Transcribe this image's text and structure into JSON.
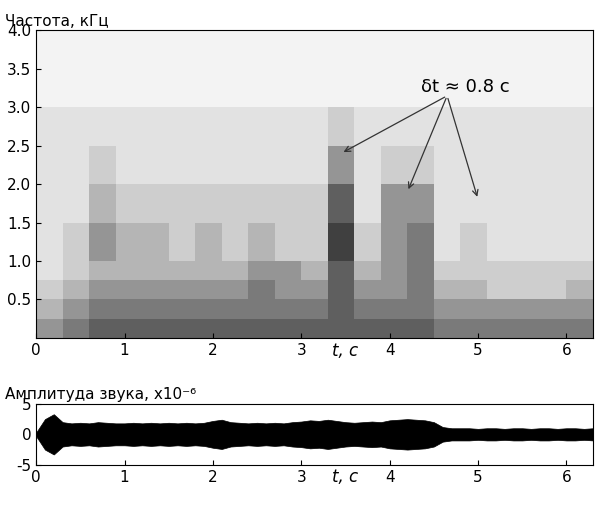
{
  "chart_data": [
    {
      "type": "heatmap",
      "ylabel": "Частота, кГц",
      "xlabel": "t, с",
      "xlim": [
        0,
        6.3
      ],
      "xticks": [
        0,
        1,
        2,
        3,
        4,
        5,
        6
      ],
      "ylim": [
        0,
        4.0
      ],
      "yticks": [
        0.5,
        1.0,
        1.5,
        2.0,
        2.5,
        3.0,
        3.5,
        4.0
      ],
      "x_edges": [
        0,
        0.3,
        0.6,
        0.9,
        1.2,
        1.5,
        1.8,
        2.1,
        2.4,
        2.7,
        3.0,
        3.3,
        3.6,
        3.9,
        4.2,
        4.5,
        4.8,
        5.1,
        5.4,
        5.7,
        6.0,
        6.3
      ],
      "y_edges": [
        0,
        0.25,
        0.5,
        0.75,
        1.0,
        1.5,
        2.0,
        2.5,
        3.0,
        4.0
      ],
      "zlim": [
        0,
        10
      ],
      "cells": [
        [
          5,
          6,
          7,
          7,
          7,
          7,
          7,
          7,
          7,
          7,
          7,
          7,
          7,
          7,
          7,
          6,
          6,
          6,
          6,
          6,
          6
        ],
        [
          4,
          5,
          6,
          6,
          6,
          6,
          6,
          6,
          6,
          6,
          6,
          7,
          6,
          6,
          6,
          5,
          5,
          5,
          5,
          5,
          5
        ],
        [
          3,
          4,
          5,
          5,
          5,
          5,
          5,
          5,
          6,
          5,
          5,
          7,
          5,
          5,
          6,
          4,
          4,
          3,
          3,
          3,
          4
        ],
        [
          2,
          3,
          4,
          4,
          4,
          4,
          4,
          4,
          5,
          5,
          4,
          7,
          4,
          5,
          6,
          3,
          3,
          3,
          3,
          3,
          3
        ],
        [
          2,
          3,
          5,
          4,
          4,
          3,
          4,
          3,
          4,
          3,
          3,
          8,
          3,
          5,
          6,
          2,
          3,
          2,
          2,
          2,
          2
        ],
        [
          2,
          2,
          4,
          3,
          3,
          3,
          3,
          3,
          3,
          3,
          3,
          7,
          2,
          5,
          5,
          2,
          2,
          2,
          2,
          2,
          2
        ],
        [
          2,
          2,
          3,
          2,
          2,
          2,
          2,
          2,
          2,
          2,
          2,
          5,
          2,
          3,
          3,
          2,
          2,
          2,
          2,
          2,
          2
        ],
        [
          2,
          2,
          2,
          2,
          2,
          2,
          2,
          2,
          2,
          2,
          2,
          3,
          2,
          2,
          2,
          2,
          2,
          2,
          2,
          2,
          2
        ],
        [
          1,
          1,
          1,
          1,
          1,
          1,
          1,
          1,
          1,
          1,
          1,
          1,
          1,
          1,
          1,
          1,
          1,
          1,
          1,
          1,
          1
        ]
      ],
      "annotation": {
        "text": "δt ≈ 0.8 с",
        "x": 4.35,
        "y": 3.15,
        "points": [
          [
            3.45,
            2.4
          ],
          [
            4.2,
            1.9
          ],
          [
            5.0,
            1.8
          ]
        ]
      }
    },
    {
      "type": "area",
      "ylabel": "Амплитуда звука, x10⁻⁶",
      "xlabel": "t, с",
      "xlim": [
        0,
        6.3
      ],
      "xticks": [
        0,
        1,
        2,
        3,
        4,
        5,
        6
      ],
      "ylim": [
        -5,
        5
      ],
      "yticks": [
        -5,
        0,
        5
      ],
      "color": "#000000",
      "x": [
        0.0,
        0.1,
        0.2,
        0.3,
        0.4,
        0.5,
        0.6,
        0.7,
        0.8,
        0.9,
        1.0,
        1.1,
        1.2,
        1.3,
        1.4,
        1.5,
        1.6,
        1.7,
        1.8,
        1.9,
        2.0,
        2.1,
        2.2,
        2.3,
        2.4,
        2.5,
        2.6,
        2.7,
        2.8,
        2.9,
        3.0,
        3.1,
        3.2,
        3.3,
        3.4,
        3.5,
        3.6,
        3.7,
        3.8,
        3.9,
        4.0,
        4.1,
        4.2,
        4.3,
        4.4,
        4.5,
        4.6,
        4.7,
        4.8,
        4.9,
        5.0,
        5.1,
        5.2,
        5.3,
        5.4,
        5.5,
        5.6,
        5.7,
        5.8,
        5.9,
        6.0,
        6.1,
        6.2,
        6.3
      ],
      "values": [
        0.3,
        2.5,
        3.3,
        2.0,
        1.8,
        1.9,
        1.8,
        2.0,
        1.9,
        1.8,
        1.8,
        1.9,
        1.8,
        1.9,
        1.8,
        1.9,
        1.8,
        1.9,
        1.8,
        1.9,
        2.2,
        2.4,
        2.0,
        1.9,
        1.8,
        1.9,
        1.8,
        1.9,
        1.8,
        2.0,
        2.1,
        2.3,
        2.2,
        2.4,
        2.2,
        2.0,
        1.9,
        2.0,
        2.1,
        2.0,
        2.3,
        2.4,
        2.5,
        2.4,
        2.3,
        2.0,
        1.2,
        1.0,
        1.0,
        1.0,
        0.9,
        1.0,
        1.0,
        0.9,
        1.0,
        1.0,
        0.9,
        1.0,
        1.0,
        0.9,
        1.0,
        1.0,
        0.9,
        1.0
      ]
    }
  ]
}
